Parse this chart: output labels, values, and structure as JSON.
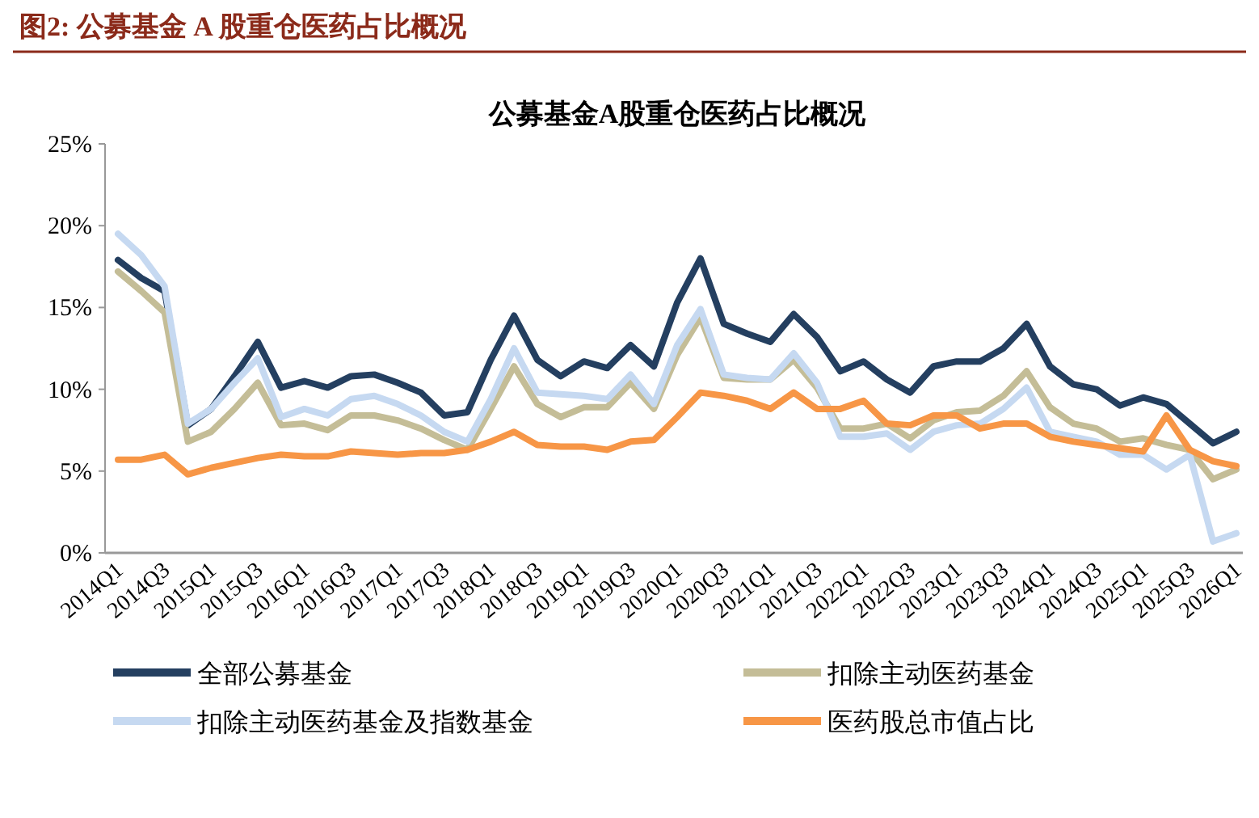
{
  "chart_data": {
    "type": "line",
    "title": "图2:  公募基金 A 股重仓医药占比概况",
    "subtitle": "公募基金A股重仓医药占比概况",
    "categories": [
      "2014Q1",
      null,
      "2014Q3",
      null,
      "2015Q1",
      null,
      "2015Q3",
      null,
      "2016Q1",
      null,
      "2016Q3",
      null,
      "2017Q1",
      null,
      "2017Q3",
      null,
      "2018Q1",
      null,
      "2018Q3",
      null,
      "2019Q1",
      null,
      "2019Q3",
      null,
      "2020Q1",
      null,
      "2020Q3",
      null,
      "2021Q1",
      null,
      "2021Q3",
      null,
      "2022Q1",
      null,
      "2022Q3",
      null,
      "2023Q1",
      null,
      "2023Q3",
      null,
      "2024Q1",
      null,
      "2024Q3",
      null,
      "2025Q1",
      null,
      "2025Q3",
      null,
      "2026Q1"
    ],
    "series": [
      {
        "name": "全部公募基金",
        "color": "#243f60",
        "values": [
          17.9,
          16.8,
          16.0,
          7.8,
          8.8,
          10.8,
          12.9,
          10.1,
          10.5,
          10.1,
          10.8,
          10.9,
          10.4,
          9.8,
          8.4,
          8.6,
          11.8,
          14.5,
          11.8,
          10.8,
          11.7,
          11.3,
          12.7,
          11.4,
          15.3,
          18.0,
          14.0,
          13.4,
          12.9,
          14.6,
          13.2,
          11.1,
          11.7,
          10.6,
          9.8,
          11.4,
          11.7,
          11.7,
          12.5,
          14.0,
          11.4,
          10.3,
          10.0,
          9.0,
          9.5,
          9.1,
          7.9,
          6.7,
          7.4
        ]
      },
      {
        "name": "扣除主动医药基金",
        "color": "#c4bd97",
        "values": [
          17.2,
          16.0,
          14.7,
          6.8,
          7.4,
          8.8,
          10.4,
          7.8,
          7.9,
          7.5,
          8.4,
          8.4,
          8.1,
          7.6,
          6.9,
          6.3,
          8.8,
          11.4,
          9.1,
          8.3,
          8.9,
          8.9,
          10.4,
          8.8,
          12.1,
          14.4,
          10.7,
          10.6,
          10.6,
          11.8,
          10.1,
          7.6,
          7.6,
          7.9,
          7.0,
          8.1,
          8.6,
          8.7,
          9.6,
          11.1,
          8.9,
          7.9,
          7.6,
          6.8,
          7.0,
          6.6,
          6.3,
          4.5,
          5.1
        ]
      },
      {
        "name": "扣除主动医药基金及指数基金",
        "color": "#c6d9f1",
        "values": [
          19.5,
          18.2,
          16.3,
          7.9,
          8.8,
          10.4,
          11.9,
          8.3,
          8.8,
          8.4,
          9.4,
          9.6,
          9.1,
          8.4,
          7.4,
          6.8,
          9.4,
          12.5,
          9.8,
          9.7,
          9.6,
          9.4,
          10.9,
          9.1,
          12.7,
          14.9,
          10.9,
          10.7,
          10.6,
          12.2,
          10.4,
          7.1,
          7.1,
          7.3,
          6.3,
          7.4,
          7.8,
          7.9,
          8.8,
          10.1,
          7.4,
          7.1,
          6.8,
          6.0,
          6.0,
          5.1,
          6.0,
          0.7,
          1.2
        ]
      },
      {
        "name": "医药股总市值占比",
        "color": "#f79646",
        "values": [
          5.7,
          5.7,
          6.0,
          4.8,
          5.2,
          5.5,
          5.8,
          6.0,
          5.9,
          5.9,
          6.2,
          6.1,
          6.0,
          6.1,
          6.1,
          6.3,
          6.8,
          7.4,
          6.6,
          6.5,
          6.5,
          6.3,
          6.8,
          6.9,
          8.3,
          9.8,
          9.6,
          9.3,
          8.8,
          9.8,
          8.8,
          8.8,
          9.3,
          7.9,
          7.8,
          8.4,
          8.4,
          7.6,
          7.9,
          7.9,
          7.1,
          6.8,
          6.6,
          6.4,
          6.2,
          8.4,
          6.3,
          5.6,
          5.3
        ]
      }
    ],
    "ylim": [
      0,
      25
    ],
    "yticks": [
      {
        "value": 0,
        "label": "0%"
      },
      {
        "value": 5,
        "label": "5%"
      },
      {
        "value": 10,
        "label": "10%"
      },
      {
        "value": 15,
        "label": "15%"
      },
      {
        "value": 20,
        "label": "20%"
      },
      {
        "value": 25,
        "label": "25%"
      }
    ],
    "legend": "bottom",
    "marker": "none",
    "line_style": "solid"
  }
}
